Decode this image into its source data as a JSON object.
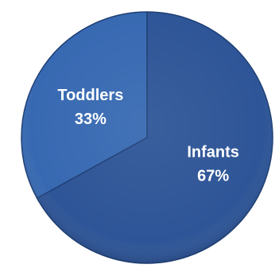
{
  "chart_data": {
    "type": "pie",
    "categories": [
      "Infants",
      "Toddlers"
    ],
    "values": [
      67,
      33
    ],
    "percent_labels": [
      "67%",
      "33%"
    ],
    "title": "",
    "legend": "none",
    "colors": {
      "Infants": "#2E5597",
      "Toddlers": "#3769B2",
      "edge_shadow": "#1F3F74"
    }
  }
}
